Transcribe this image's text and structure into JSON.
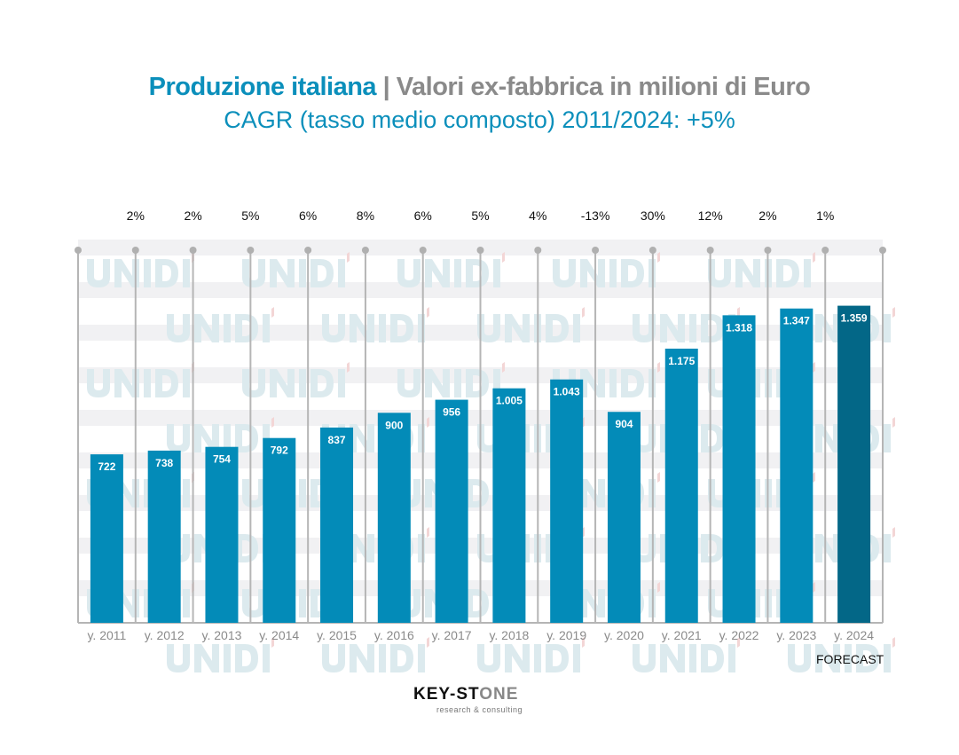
{
  "title": {
    "part1": "Produzione italiana",
    "part2": " | Valori ex-fabbrica in milioni di Euro"
  },
  "subtitle": "CAGR (tasso medio composto) 2011/2024: +5%",
  "forecast_label": "FORECAST",
  "logo": {
    "brand": "KEY-STONE",
    "tagline": "research & consulting",
    "watermark": "UNIDI"
  },
  "colors": {
    "bar": "#038bb8",
    "forecast_bar": "#036787",
    "title_accent": "#0b8fbb",
    "title_gray": "#8a8a8a"
  },
  "chart_data": {
    "type": "bar",
    "categories": [
      "y. 2011",
      "y. 2012",
      "y. 2013",
      "y. 2014",
      "y. 2015",
      "y. 2016",
      "y. 2017",
      "y. 2018",
      "y. 2019",
      "y. 2020",
      "y. 2021",
      "y. 2022",
      "y. 2023",
      "y. 2024"
    ],
    "values": [
      722,
      738,
      754,
      792,
      837,
      900,
      956,
      1005,
      1043,
      904,
      1175,
      1318,
      1347,
      1359
    ],
    "value_labels": [
      "722",
      "738",
      "754",
      "792",
      "837",
      "900",
      "956",
      "1.005",
      "1.043",
      "904",
      "1.175",
      "1.318",
      "1.347",
      "1.359"
    ],
    "growth_labels": [
      "2%",
      "2%",
      "5%",
      "6%",
      "8%",
      "6%",
      "5%",
      "4%",
      "-13%",
      "30%",
      "12%",
      "2%",
      "1%"
    ],
    "forecast_index": 13,
    "ylim": [
      0,
      1640
    ]
  }
}
